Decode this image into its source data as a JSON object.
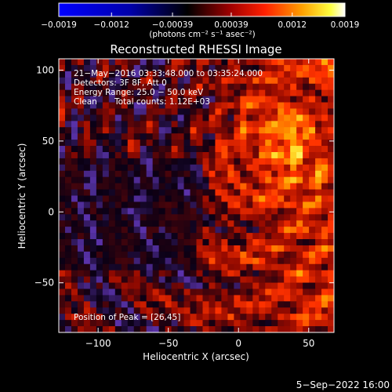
{
  "title": "Reconstructed RHESSI Image",
  "colorbar": {
    "tick_labels": [
      "−0.0019",
      "−0.0012",
      "−0.00039",
      "0.00039",
      "0.0012",
      "0.0019"
    ],
    "tick_values": [
      -0.0019,
      -0.0012,
      -0.00039,
      0.00039,
      0.0012,
      0.0019
    ],
    "range": [
      -0.0019,
      0.0019
    ],
    "unit_label": "(photons cm⁻² s⁻¹ asec⁻²)"
  },
  "info": {
    "line1": "21−May−2016 03:33:48.000 to 03:35:24.000",
    "line2": "Detectors: 3F 8F, Att 0",
    "line3": "Energy Range: 25.0 − 50.0 keV",
    "line4_a": "Clean",
    "line4_b": "Total counts: 1.12E+03",
    "peak": "Position of Peak = [26,45]"
  },
  "footer": {
    "timestamp": "5−Sep−2022 16:00"
  },
  "chart_data": {
    "type": "heatmap",
    "title": "Reconstructed RHESSI Image",
    "xlabel": "Heliocentric X (arcsec)",
    "ylabel": "Heliocentric Y (arcsec)",
    "xlim": [
      -128,
      68
    ],
    "ylim": [
      -85,
      108
    ],
    "x_ticks": [
      -100,
      -50,
      0,
      50
    ],
    "y_ticks": [
      -50,
      0,
      50,
      100
    ],
    "x_tick_labels": [
      "−100",
      "−50",
      "0",
      "50"
    ],
    "y_tick_labels": [
      "−50",
      "0",
      "50",
      "100"
    ],
    "peak_position": [
      26,
      45
    ],
    "colormap": [
      "#0000ff",
      "#000000",
      "#ff0000",
      "#ffff00",
      "#ffffff"
    ],
    "grid": false
  }
}
